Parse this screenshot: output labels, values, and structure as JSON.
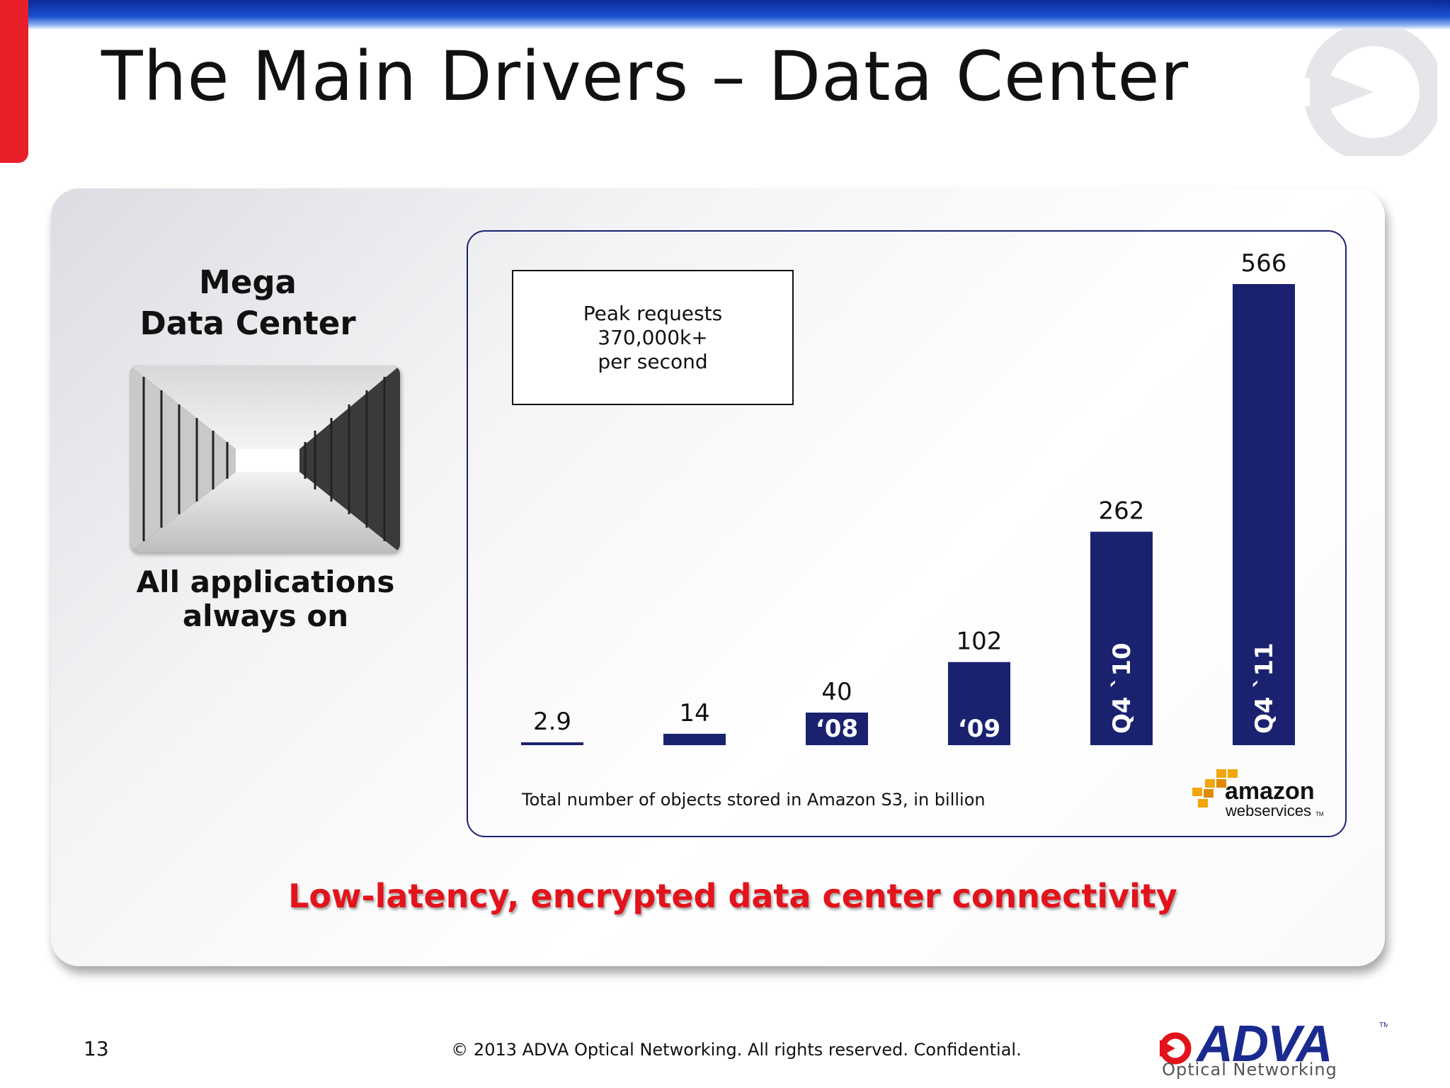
{
  "slide": {
    "title": "The Main Drivers – Data Center",
    "left_heading_line1": "Mega",
    "left_heading_line2": "Data Center",
    "left_caption_line1": "All applications",
    "left_caption_line2": "always on",
    "tagline": "Low-latency, encrypted data center connectivity",
    "page_number": "13",
    "copyright": "© 2013 ADVA Optical Networking. All rights reserved. Confidential.",
    "logo": {
      "brand": "ADVA",
      "tm": "TM",
      "subtitle": "Optical Networking"
    },
    "colors": {
      "accent_red": "#e3131b",
      "bar_navy": "#1a2270",
      "header_blue": "#1a4fd0"
    }
  },
  "callout": {
    "line1": "Peak requests",
    "line2": "370,000k+",
    "line3": "per second"
  },
  "aws_logo": {
    "word": "amazon",
    "sub": "webservices",
    "tm": "TM"
  },
  "chart_data": {
    "type": "bar",
    "caption": "Total number of objects stored in Amazon S3, in billion",
    "categories": [
      "",
      "",
      "‘08",
      "‘09",
      "Q4 `10",
      "Q4 `11"
    ],
    "values": [
      2.9,
      14,
      40,
      102,
      262,
      566
    ],
    "value_labels": [
      "2.9",
      "14",
      "40",
      "102",
      "262",
      "566"
    ],
    "ylim": [
      0,
      566
    ],
    "grid": false,
    "bar_color": "#1a2270"
  }
}
